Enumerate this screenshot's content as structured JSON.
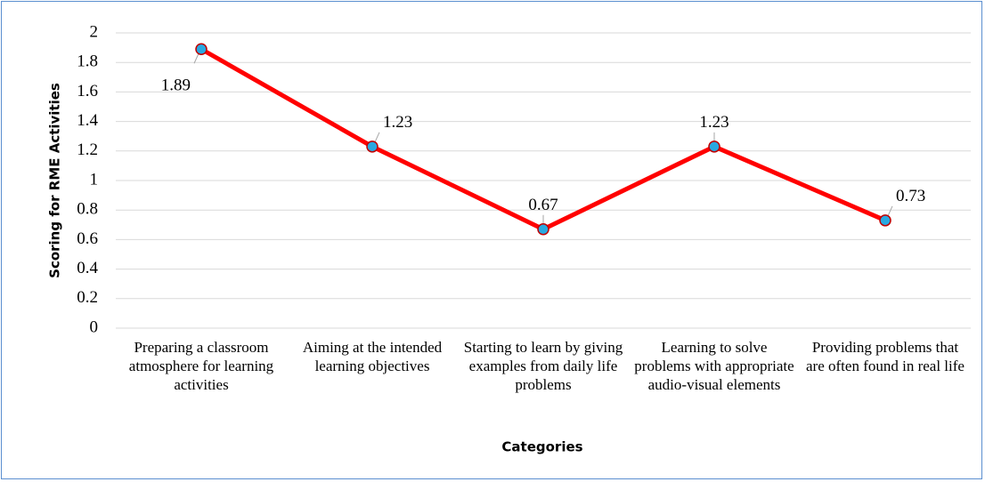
{
  "chart_data": {
    "type": "line",
    "y_label": "Scoring for RME Activities",
    "x_label": "Categories",
    "categories": [
      "Preparing a classroom atmosphere for learning activities",
      "Aiming at the intended learning objectives",
      "Starting to learn by giving examples from daily life problems",
      "Learning to solve problems with appropriate  audio-visual elements",
      "Providing problems that are often found in real life"
    ],
    "values": [
      1.89,
      1.23,
      0.67,
      1.23,
      0.73
    ],
    "color": "#ff0000",
    "marker_color": "#29a8e0",
    "ylim": [
      0,
      2
    ],
    "yticks": [
      0,
      0.2,
      0.4,
      0.6,
      0.8,
      1,
      1.2,
      1.4,
      1.6,
      1.8,
      2
    ],
    "grid": true
  }
}
